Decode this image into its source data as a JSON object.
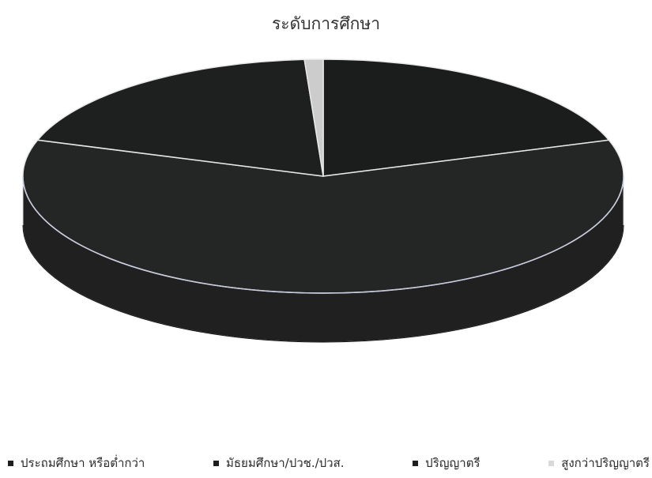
{
  "chart_data": {
    "type": "pie",
    "title": "ระดับการศึกษา",
    "categories": [
      "ประถมศึกษา หรือต่ำกว่า",
      "มัธยมศึกษา/ปวช./ปวส.",
      "ปริญญาตรี",
      "สูงกว่าปริญญาตรี"
    ],
    "values": [
      20,
      60,
      19,
      1
    ],
    "colors": [
      "#1b1d1c",
      "#242625",
      "#1e201f",
      "#cccccc"
    ],
    "legend_position": "bottom"
  }
}
